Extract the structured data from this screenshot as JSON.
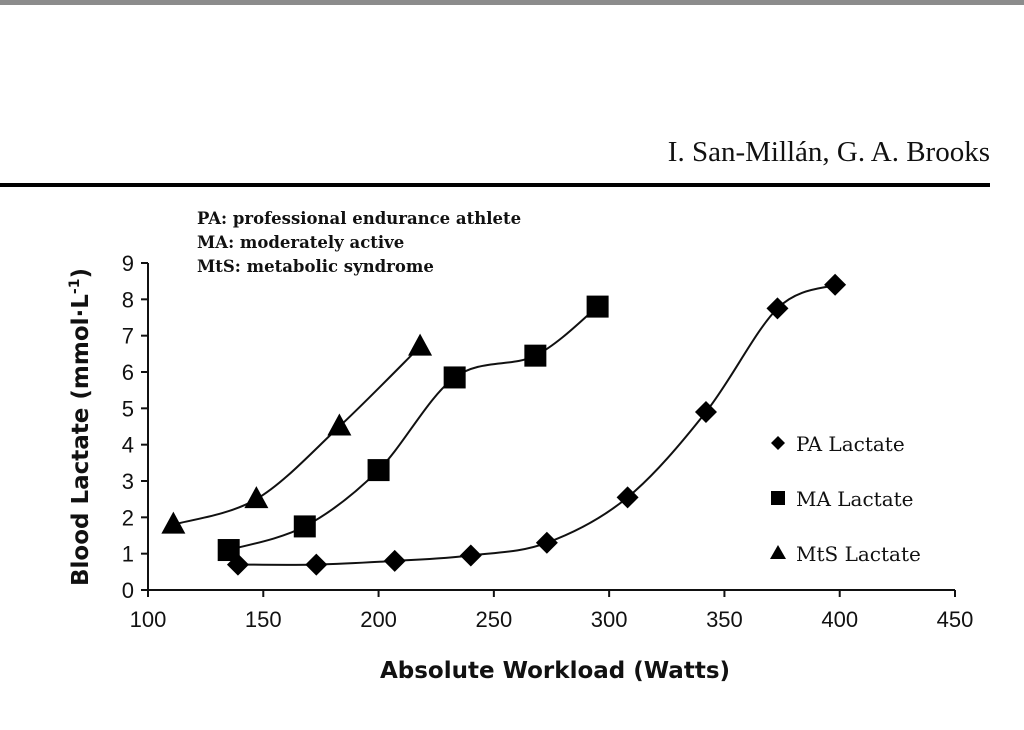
{
  "header": {
    "authors": "I. San-Millán, G. A. Brooks"
  },
  "chart_data": {
    "type": "scatter",
    "title": "",
    "xlabel": "Absolute Workload (Watts)",
    "ylabel": "Blood Lactate (mmol·L",
    "ylabel_superscript": "-1",
    "ylabel_close": ")",
    "xlim": [
      100,
      450
    ],
    "ylim": [
      0,
      9
    ],
    "xticks": [
      100,
      150,
      200,
      250,
      300,
      350,
      400,
      450
    ],
    "yticks": [
      0,
      1,
      2,
      3,
      4,
      5,
      6,
      7,
      8,
      9
    ],
    "grid": false,
    "legend_position": "right",
    "annotations": [
      "PA: professional endurance athlete",
      "MA: moderately active",
      "MtS: metabolic syndrome"
    ],
    "series": [
      {
        "name": "PA Lactate",
        "marker": "diamond",
        "x": [
          139,
          173,
          207,
          240,
          273,
          308,
          342,
          373,
          398
        ],
        "y": [
          0.7,
          0.7,
          0.8,
          0.95,
          1.3,
          2.55,
          4.9,
          7.75,
          8.4
        ]
      },
      {
        "name": "MA Lactate",
        "marker": "square",
        "x": [
          135,
          168,
          200,
          233,
          268,
          295
        ],
        "y": [
          1.1,
          1.75,
          3.3,
          5.85,
          6.45,
          7.8
        ]
      },
      {
        "name": "MtS Lactate",
        "marker": "triangle",
        "x": [
          111,
          147,
          183,
          218
        ],
        "y": [
          1.8,
          2.5,
          4.5,
          6.7
        ]
      }
    ],
    "colors": {
      "marker": "#000000",
      "line": "#111111"
    }
  }
}
